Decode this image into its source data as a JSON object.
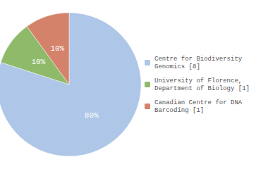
{
  "chart_data": {
    "type": "pie",
    "categories": [
      "Centre for Biodiversity\nGenomics [8]",
      "University of Florence,\nDepartment of Biology [1]",
      "Canadian Centre for DNA\nBarcoding [1]"
    ],
    "values": [
      80,
      10,
      10
    ],
    "value_labels": [
      "80%",
      "10%",
      "10%"
    ],
    "data_labels": true,
    "colors": [
      "#aec6e8",
      "#8fba6a",
      "#d4836a"
    ],
    "legend": "right"
  }
}
